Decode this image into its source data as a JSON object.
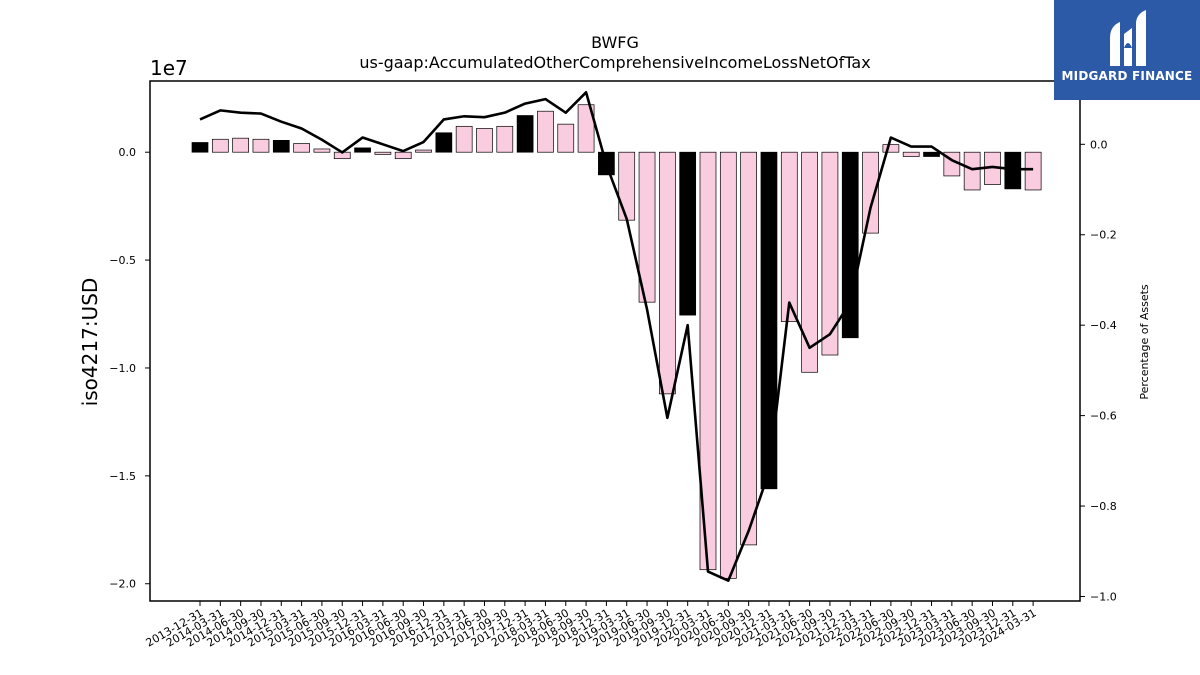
{
  "chart_data": {
    "type": "bar",
    "title": "BWFG",
    "subtitle": "us-gaap:AccumulatedOtherComprehensiveIncomeLossNetOfTax",
    "ylabel": "iso4217:USD",
    "y2label": "Percentage of Assets",
    "y_scale_label": "1e7",
    "ylim": [
      -2.08,
      0.33
    ],
    "y2lim": [
      -1.01,
      0.14
    ],
    "yticks": [
      0.0,
      -0.5,
      -1.0,
      -1.5,
      -2.0
    ],
    "yticklabels": [
      "0.0",
      "−0.5",
      "−1.0",
      "−1.5",
      "−2.0"
    ],
    "y2ticks": [
      0.0,
      -0.2,
      -0.4,
      -0.6,
      -0.8,
      -1.0
    ],
    "y2ticklabels": [
      "0.0",
      "−0.2",
      "−0.4",
      "−0.6",
      "−0.8",
      "−1.0"
    ],
    "categories": [
      "2013-12-31",
      "2014-03-31",
      "2014-06-30",
      "2014-09-30",
      "2014-12-31",
      "2015-03-31",
      "2015-06-30",
      "2015-09-30",
      "2015-12-31",
      "2016-03-31",
      "2016-06-30",
      "2016-09-30",
      "2016-12-31",
      "2017-03-31",
      "2017-06-30",
      "2017-09-30",
      "2017-12-31",
      "2018-03-31",
      "2018-06-30",
      "2018-09-30",
      "2018-12-31",
      "2019-03-31",
      "2019-06-30",
      "2019-09-30",
      "2019-12-31",
      "2020-03-31",
      "2020-06-30",
      "2020-09-30",
      "2020-12-31",
      "2021-03-31",
      "2021-06-30",
      "2021-09-30",
      "2021-12-31",
      "2022-03-31",
      "2022-06-30",
      "2022-09-30",
      "2022-12-31",
      "2023-03-31",
      "2023-06-30",
      "2023-09-30",
      "2023-12-31",
      "2024-03-31"
    ],
    "series": [
      {
        "type": "bar",
        "axis": "left",
        "values": [
          0.045,
          0.06,
          0.065,
          0.06,
          0.055,
          0.04,
          0.015,
          -0.03,
          0.02,
          -0.01,
          -0.03,
          0.01,
          0.09,
          0.12,
          0.11,
          0.12,
          0.17,
          0.19,
          0.13,
          0.22,
          -0.105,
          -0.315,
          -0.695,
          -1.12,
          -0.755,
          -1.935,
          -1.975,
          -1.82,
          -1.56,
          -0.785,
          -1.02,
          -0.94,
          -0.86,
          -0.375,
          0.035,
          -0.02,
          -0.02,
          -0.11,
          -0.175,
          -0.15,
          -0.17,
          -0.175
        ],
        "bar_colors": [
          "#000000",
          "#f9cce0",
          "#f9cce0",
          "#f9cce0",
          "#000000",
          "#f9cce0",
          "#f9cce0",
          "#f9cce0",
          "#000000",
          "#f9cce0",
          "#f9cce0",
          "#f9cce0",
          "#000000",
          "#f9cce0",
          "#f9cce0",
          "#f9cce0",
          "#000000",
          "#f9cce0",
          "#f9cce0",
          "#f9cce0",
          "#000000",
          "#f9cce0",
          "#f9cce0",
          "#f9cce0",
          "#000000",
          "#f9cce0",
          "#f9cce0",
          "#f9cce0",
          "#000000",
          "#f9cce0",
          "#f9cce0",
          "#f9cce0",
          "#000000",
          "#f9cce0",
          "#f9cce0",
          "#f9cce0",
          "#000000",
          "#f9cce0",
          "#f9cce0",
          "#f9cce0",
          "#000000",
          "#f9cce0"
        ]
      },
      {
        "type": "line",
        "axis": "right",
        "color": "#000000",
        "values": [
          0.055,
          0.075,
          0.07,
          0.068,
          0.05,
          0.035,
          0.01,
          -0.018,
          0.015,
          0.0,
          -0.015,
          0.005,
          0.055,
          0.062,
          0.06,
          0.07,
          0.09,
          0.1,
          0.07,
          0.115,
          -0.045,
          -0.165,
          -0.365,
          -0.605,
          -0.4,
          -0.945,
          -0.965,
          -0.855,
          -0.725,
          -0.35,
          -0.45,
          -0.42,
          -0.35,
          -0.14,
          0.015,
          -0.005,
          -0.005,
          -0.035,
          -0.055,
          -0.05,
          -0.055,
          -0.055
        ]
      }
    ],
    "colors": {
      "bar_highlight": "#000000",
      "bar_default": "#f9cce0",
      "bar_edge": "#000000",
      "line": "#000000"
    }
  },
  "logo": {
    "text": "MIDGARD FINANCE",
    "background": "#2d5aa6"
  }
}
